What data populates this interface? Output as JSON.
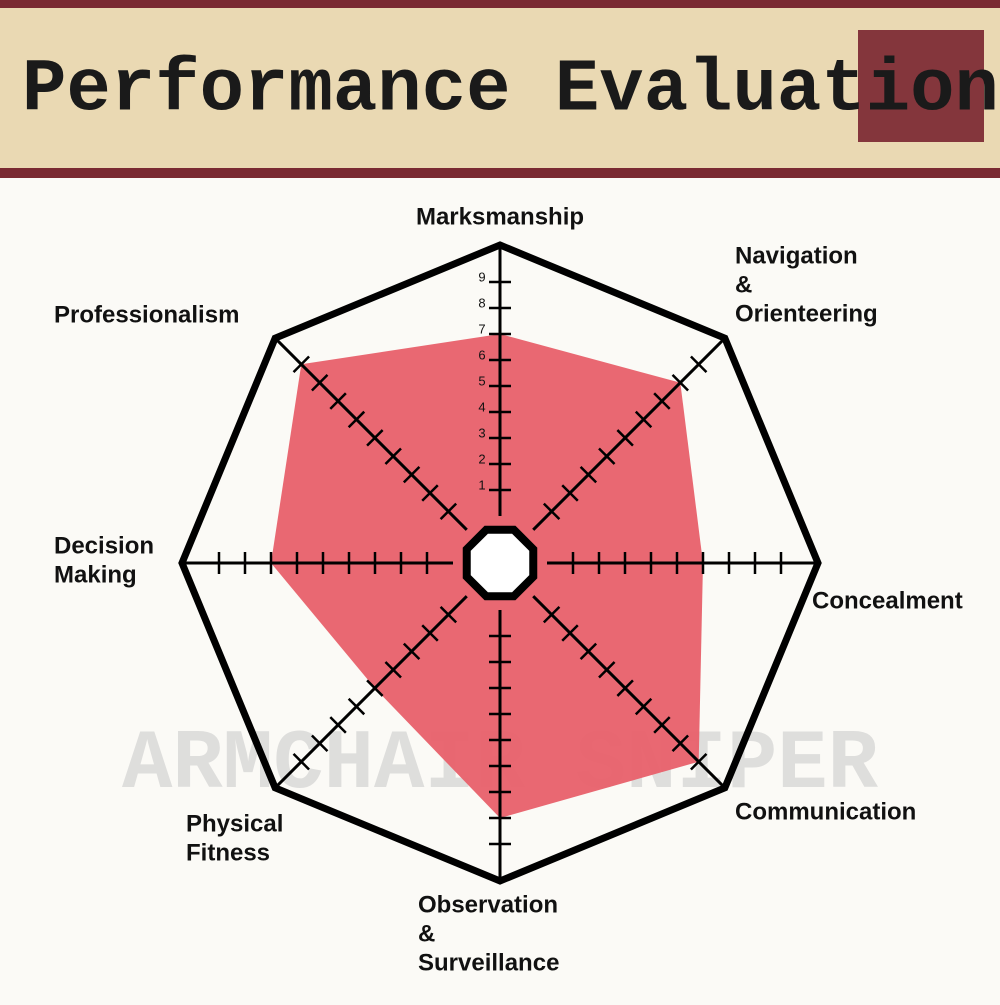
{
  "chart_data": {
    "type": "radar",
    "title": "Performance Evaluations",
    "watermark": "ARMCHAIR SNIPER",
    "categories": [
      [
        "Marksmanship"
      ],
      [
        "Navigation",
        "&",
        "Orienteering"
      ],
      [
        "Concealment"
      ],
      [
        "Communication"
      ],
      [
        "Observation",
        "&",
        "Surveillance"
      ],
      [
        "Physical",
        "Fitness"
      ],
      [
        "Decision",
        "Making"
      ],
      [
        "Professionalism"
      ]
    ],
    "values": [
      7,
      8,
      6,
      9,
      8,
      5,
      7,
      9
    ],
    "color": "#e8606a",
    "rlim": [
      0,
      10
    ],
    "rticks": [
      1,
      2,
      3,
      4,
      5,
      6,
      7,
      8,
      9
    ]
  }
}
